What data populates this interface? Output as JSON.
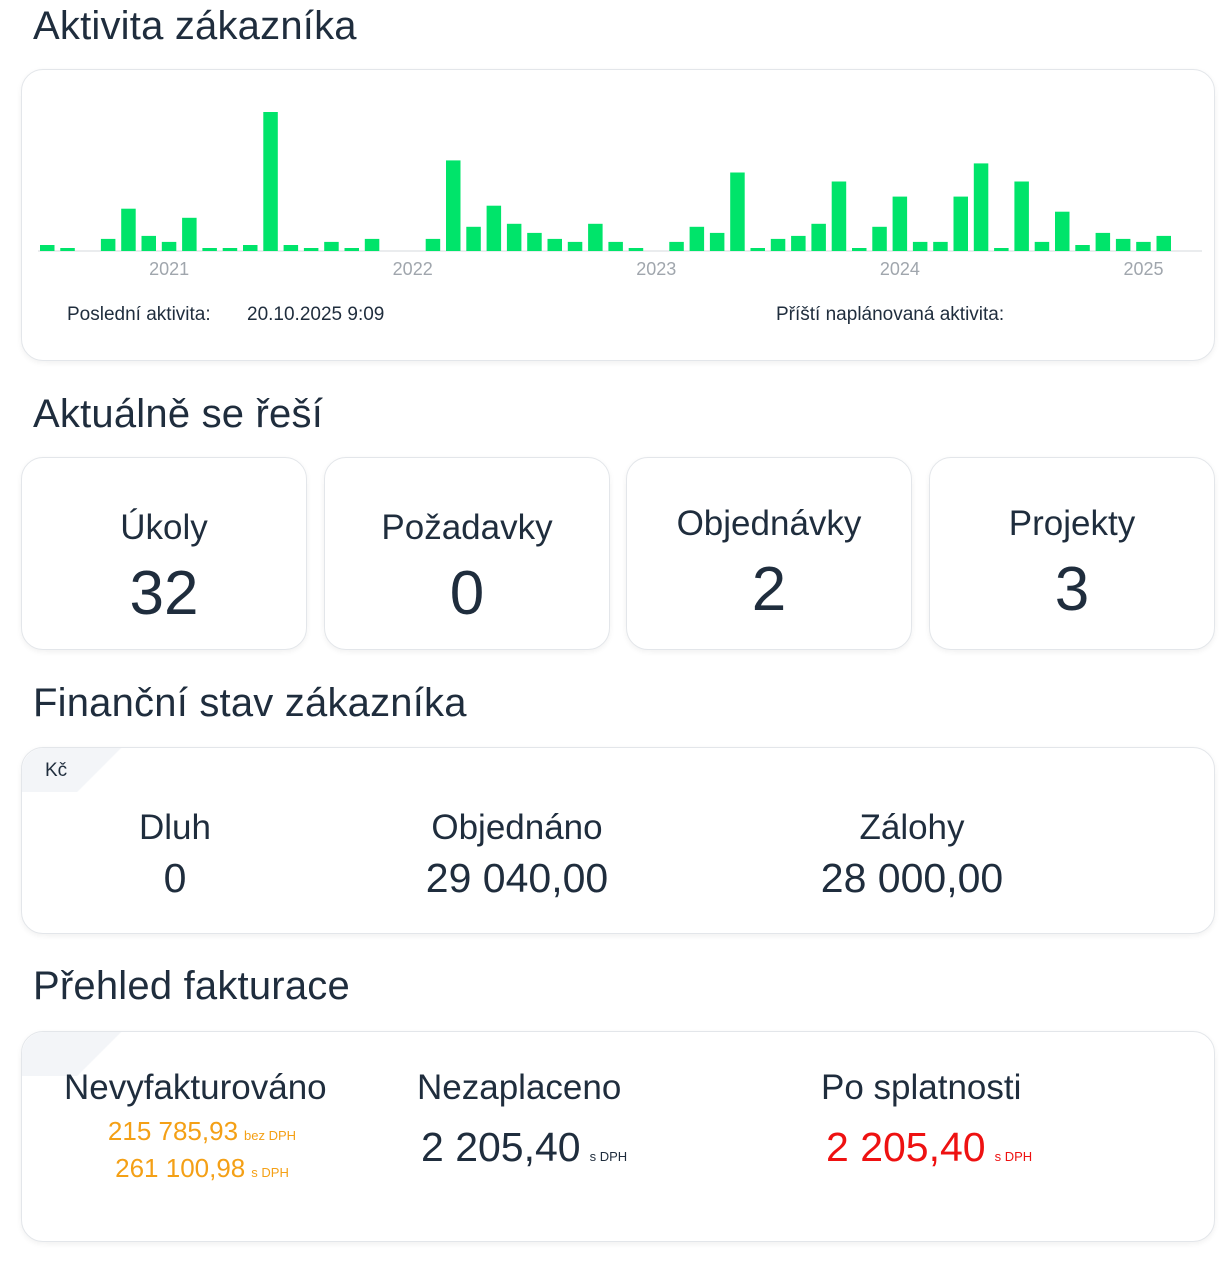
{
  "activity": {
    "title": "Aktivita zákazníka",
    "last_label": "Poslední aktivita:",
    "last_value": "20.10.2025 9:09",
    "next_label": "Příští naplánovaná aktivita:",
    "next_value": ""
  },
  "chart_data": {
    "type": "bar",
    "x_tick_labels": [
      "2021",
      "2022",
      "2023",
      "2024",
      "2025"
    ],
    "x_tick_bar_index": [
      6,
      18,
      30,
      42,
      54
    ],
    "bar_color": "#00e46a",
    "values": [
      1,
      0.5,
      0,
      2,
      7,
      2.5,
      1.5,
      5.5,
      0.5,
      0.5,
      1,
      23,
      1,
      0.5,
      1.5,
      0.5,
      2,
      0,
      0,
      2,
      15,
      4,
      7.5,
      4.5,
      3,
      2,
      1.5,
      4.5,
      1.5,
      0.5,
      0,
      1.5,
      4,
      3,
      13,
      0.5,
      2,
      2.5,
      4.5,
      11.5,
      0.5,
      4,
      9,
      1.5,
      1.5,
      9,
      14.5,
      0.5,
      11.5,
      1.5,
      6.5,
      1,
      3,
      2,
      1.5,
      2.5
    ],
    "ylim": [
      0,
      24
    ]
  },
  "current": {
    "title": "Aktuálně se řeší",
    "cards": [
      {
        "label": "Úkoly",
        "value": "32"
      },
      {
        "label": "Požadavky",
        "value": "0"
      },
      {
        "label": "Objednávky",
        "value": "2"
      },
      {
        "label": "Projekty",
        "value": "3"
      }
    ]
  },
  "finance": {
    "title": "Finanční stav zákazníka",
    "currency": "Kč",
    "items": [
      {
        "label": "Dluh",
        "value": "0"
      },
      {
        "label": "Objednáno",
        "value": "29 040,00"
      },
      {
        "label": "Zálohy",
        "value": "28 000,00"
      }
    ]
  },
  "invoicing": {
    "title": "Přehled fakturace",
    "unbilled_label": "Nevyfakturováno",
    "unbilled_net": "215 785,93",
    "unbilled_net_suffix": "bez DPH",
    "unbilled_gross": "261 100,98",
    "unbilled_gross_suffix": "s DPH",
    "unpaid_label": "Nezaplaceno",
    "unpaid_value": "2 205,40",
    "unpaid_suffix": "s DPH",
    "overdue_label": "Po splatnosti",
    "overdue_value": "2 205,40",
    "overdue_suffix": "s DPH",
    "colors": {
      "unbilled": "#f4a016",
      "overdue": "#ee1111"
    }
  }
}
